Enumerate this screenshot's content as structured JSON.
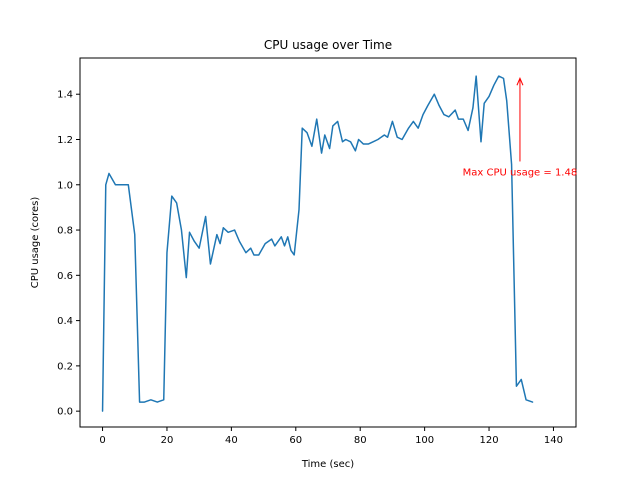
{
  "chart_data": {
    "type": "line",
    "title": "CPU usage over Time",
    "xlabel": "Time (sec)",
    "ylabel": "CPU usage (cores)",
    "xlim": [
      -7,
      147
    ],
    "ylim": [
      -0.07,
      1.56
    ],
    "xticks": [
      0,
      20,
      40,
      60,
      80,
      100,
      120,
      140
    ],
    "xtick_labels": [
      "0",
      "20",
      "40",
      "60",
      "80",
      "100",
      "120",
      "140"
    ],
    "yticks": [
      0.0,
      0.2,
      0.4,
      0.6,
      0.8,
      1.0,
      1.2,
      1.4
    ],
    "ytick_labels": [
      "0.0",
      "0.2",
      "0.4",
      "0.6",
      "0.8",
      "1.0",
      "1.2",
      "1.4"
    ],
    "grid": false,
    "series": [
      {
        "color": "#1f77b4",
        "points": [
          [
            0,
            0.0
          ],
          [
            1,
            1.0
          ],
          [
            2,
            1.05
          ],
          [
            4,
            1.0
          ],
          [
            6,
            1.0
          ],
          [
            8,
            1.0
          ],
          [
            10,
            0.78
          ],
          [
            11.5,
            0.04
          ],
          [
            13,
            0.04
          ],
          [
            15,
            0.05
          ],
          [
            17,
            0.04
          ],
          [
            19,
            0.05
          ],
          [
            20,
            0.7
          ],
          [
            21.5,
            0.95
          ],
          [
            23,
            0.92
          ],
          [
            24.5,
            0.8
          ],
          [
            26,
            0.59
          ],
          [
            27,
            0.79
          ],
          [
            28.5,
            0.75
          ],
          [
            30,
            0.72
          ],
          [
            32,
            0.86
          ],
          [
            33.5,
            0.65
          ],
          [
            35.5,
            0.78
          ],
          [
            36.5,
            0.74
          ],
          [
            37.5,
            0.81
          ],
          [
            39,
            0.79
          ],
          [
            41,
            0.8
          ],
          [
            42.5,
            0.75
          ],
          [
            44.5,
            0.7
          ],
          [
            46,
            0.72
          ],
          [
            47,
            0.69
          ],
          [
            48.5,
            0.69
          ],
          [
            50.5,
            0.74
          ],
          [
            52.5,
            0.76
          ],
          [
            53.5,
            0.73
          ],
          [
            55.5,
            0.77
          ],
          [
            56.5,
            0.73
          ],
          [
            57.5,
            0.77
          ],
          [
            58.5,
            0.71
          ],
          [
            59.5,
            0.69
          ],
          [
            61,
            0.89
          ],
          [
            62,
            1.25
          ],
          [
            63.5,
            1.23
          ],
          [
            65,
            1.17
          ],
          [
            66.5,
            1.29
          ],
          [
            68,
            1.14
          ],
          [
            69,
            1.22
          ],
          [
            70.5,
            1.16
          ],
          [
            71.5,
            1.26
          ],
          [
            73,
            1.28
          ],
          [
            74.5,
            1.19
          ],
          [
            75.5,
            1.2
          ],
          [
            77,
            1.19
          ],
          [
            78.5,
            1.15
          ],
          [
            79.5,
            1.2
          ],
          [
            81,
            1.18
          ],
          [
            82.5,
            1.18
          ],
          [
            84,
            1.19
          ],
          [
            85.5,
            1.2
          ],
          [
            87.5,
            1.22
          ],
          [
            88.5,
            1.21
          ],
          [
            90,
            1.28
          ],
          [
            91.5,
            1.21
          ],
          [
            93,
            1.2
          ],
          [
            95,
            1.25
          ],
          [
            96.5,
            1.28
          ],
          [
            98,
            1.25
          ],
          [
            99.5,
            1.31
          ],
          [
            101,
            1.35
          ],
          [
            103,
            1.4
          ],
          [
            104.5,
            1.35
          ],
          [
            106,
            1.31
          ],
          [
            107.5,
            1.3
          ],
          [
            109.5,
            1.33
          ],
          [
            110.5,
            1.29
          ],
          [
            112,
            1.29
          ],
          [
            113.5,
            1.24
          ],
          [
            115,
            1.34
          ],
          [
            116,
            1.48
          ],
          [
            117.5,
            1.19
          ],
          [
            118.5,
            1.36
          ],
          [
            120,
            1.39
          ],
          [
            121.5,
            1.44
          ],
          [
            123,
            1.48
          ],
          [
            124.5,
            1.47
          ],
          [
            125.5,
            1.37
          ],
          [
            127,
            1.09
          ],
          [
            128.5,
            0.11
          ],
          [
            130,
            0.14
          ],
          [
            131.5,
            0.05
          ],
          [
            133.5,
            0.04
          ]
        ]
      }
    ],
    "annotations": [
      {
        "text": "Max CPU usage = 1.48",
        "color": "#ff0000",
        "xy": [
          129.6,
          1.475
        ],
        "xytext": [
          129.6,
          1.05
        ]
      }
    ]
  }
}
